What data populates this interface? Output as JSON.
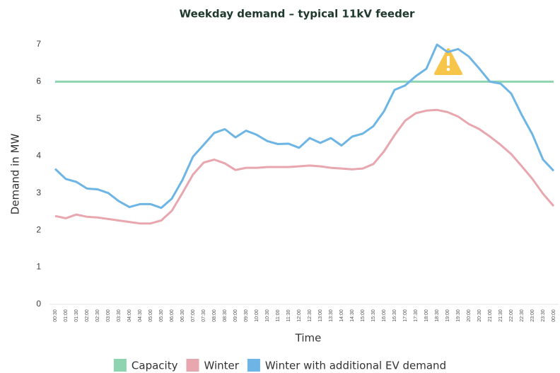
{
  "chart_data": {
    "type": "line",
    "title": "Weekday demand – typical 11kV feeder",
    "x_label": "Time",
    "y_label": "Demand in MW",
    "categories": [
      "00:30",
      "01:00",
      "01:30",
      "02:00",
      "02:30",
      "03:00",
      "03:30",
      "04:00",
      "04:30",
      "05:00",
      "05:30",
      "06:00",
      "06:30",
      "07:00",
      "07:30",
      "08:00",
      "08:30",
      "09:00",
      "09:30",
      "10:00",
      "10:30",
      "11:00",
      "11:30",
      "12:00",
      "12:30",
      "13:00",
      "13:30",
      "14:00",
      "14:30",
      "15:00",
      "15:30",
      "16:00",
      "16:30",
      "17:00",
      "17:30",
      "18:00",
      "18:30",
      "19:00",
      "19:30",
      "20:00",
      "20:30",
      "21:00",
      "21:30",
      "22:00",
      "22:30",
      "23:00",
      "23:30",
      "00:00"
    ],
    "series": [
      {
        "name": "Capacity",
        "color": "#8fd4b1",
        "values": [
          6,
          6,
          6,
          6,
          6,
          6,
          6,
          6,
          6,
          6,
          6,
          6,
          6,
          6,
          6,
          6,
          6,
          6,
          6,
          6,
          6,
          6,
          6,
          6,
          6,
          6,
          6,
          6,
          6,
          6,
          6,
          6,
          6,
          6,
          6,
          6,
          6,
          6,
          6,
          6,
          6,
          6,
          6,
          6,
          6,
          6,
          6,
          6
        ]
      },
      {
        "name": "Winter",
        "color": "#e8a6ae",
        "values": [
          2.38,
          2.32,
          2.42,
          2.36,
          2.34,
          2.3,
          2.26,
          2.22,
          2.18,
          2.18,
          2.26,
          2.52,
          3.0,
          3.5,
          3.82,
          3.9,
          3.8,
          3.62,
          3.68,
          3.68,
          3.7,
          3.7,
          3.7,
          3.72,
          3.74,
          3.72,
          3.68,
          3.66,
          3.64,
          3.66,
          3.78,
          4.12,
          4.56,
          4.95,
          5.15,
          5.22,
          5.24,
          5.18,
          5.06,
          4.86,
          4.72,
          4.52,
          4.3,
          4.05,
          3.72,
          3.38,
          2.98,
          2.65
        ]
      },
      {
        "name": "Winter with additional EV demand",
        "color": "#6db5e5",
        "values": [
          3.65,
          3.38,
          3.3,
          3.12,
          3.1,
          3.0,
          2.78,
          2.62,
          2.7,
          2.7,
          2.6,
          2.85,
          3.35,
          3.98,
          4.3,
          4.62,
          4.72,
          4.5,
          4.68,
          4.57,
          4.4,
          4.32,
          4.33,
          4.22,
          4.48,
          4.35,
          4.48,
          4.28,
          4.52,
          4.6,
          4.8,
          5.2,
          5.78,
          5.9,
          6.15,
          6.35,
          7.0,
          6.8,
          6.88,
          6.68,
          6.35,
          6.0,
          5.95,
          5.68,
          5.1,
          4.58,
          3.9,
          3.6
        ]
      }
    ],
    "ylim": [
      0,
      7
    ],
    "yticks": [
      0,
      1,
      2,
      3,
      4,
      5,
      6,
      7
    ],
    "grid": false,
    "legend": "bottom"
  }
}
